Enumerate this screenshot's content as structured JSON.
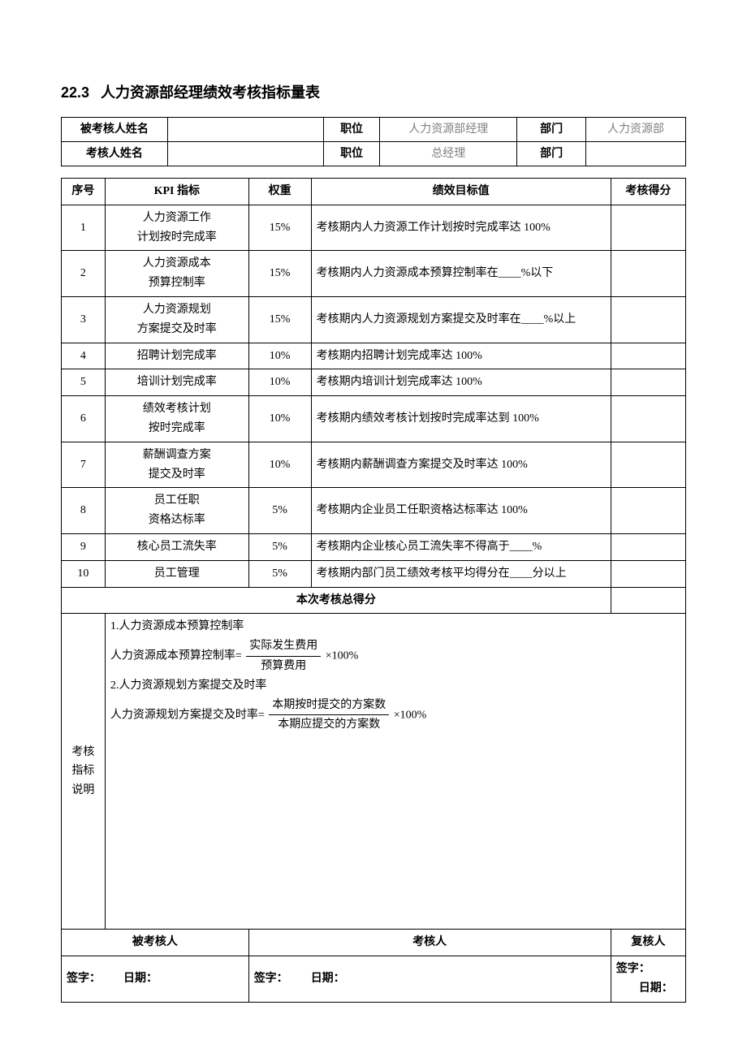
{
  "title_number": "22.3",
  "title_text": "人力资源部经理绩效考核指标量表",
  "header": {
    "row1": {
      "label1": "被考核人姓名",
      "val1": "",
      "label2": "职位",
      "val2": "人力资源部经理",
      "label3": "部门",
      "val3": "人力资源部"
    },
    "row2": {
      "label1": "考核人姓名",
      "val1": "",
      "label2": "职位",
      "val2": "总经理",
      "label3": "部门",
      "val3": ""
    }
  },
  "kpi_headers": {
    "seq": "序号",
    "kpi": "KPI 指标",
    "weight": "权重",
    "target": "绩效目标值",
    "score": "考核得分"
  },
  "kpi_rows": [
    {
      "seq": "1",
      "kpi": "人力资源工作\n计划按时完成率",
      "weight": "15%",
      "target": "考核期内人力资源工作计划按时完成率达 100%"
    },
    {
      "seq": "2",
      "kpi": "人力资源成本\n预算控制率",
      "weight": "15%",
      "target": "考核期内人力资源成本预算控制率在____%以下"
    },
    {
      "seq": "3",
      "kpi": "人力资源规划\n方案提交及时率",
      "weight": "15%",
      "target": "考核期内人力资源规划方案提交及时率在____%以上"
    },
    {
      "seq": "4",
      "kpi": "招聘计划完成率",
      "weight": "10%",
      "target": "考核期内招聘计划完成率达 100%"
    },
    {
      "seq": "5",
      "kpi": "培训计划完成率",
      "weight": "10%",
      "target": "考核期内培训计划完成率达 100%"
    },
    {
      "seq": "6",
      "kpi": "绩效考核计划\n按时完成率",
      "weight": "10%",
      "target": "考核期内绩效考核计划按时完成率达到 100%"
    },
    {
      "seq": "7",
      "kpi": "薪酬调查方案\n提交及时率",
      "weight": "10%",
      "target": "考核期内薪酬调查方案提交及时率达 100%"
    },
    {
      "seq": "8",
      "kpi": "员工任职\n资格达标率",
      "weight": "5%",
      "target": "考核期内企业员工任职资格达标率达 100%"
    },
    {
      "seq": "9",
      "kpi": "核心员工流失率",
      "weight": "5%",
      "target": "考核期内企业核心员工流失率不得高于____%"
    },
    {
      "seq": "10",
      "kpi": "员工管理",
      "weight": "5%",
      "target": "考核期内部门员工绩效考核平均得分在____分以上"
    }
  ],
  "total_label": "本次考核总得分",
  "exp_label": "考核\n指标\n说明",
  "exp": {
    "line1": "1.人力资源成本预算控制率",
    "f1_lead": "人力资源成本预算控制率= ",
    "f1_top": "实际发生费用",
    "f1_bot": "预算费用",
    "f1_tail": " ×100%",
    "line2": "2.人力资源规划方案提交及时率",
    "f2_lead": "人力资源规划方案提交及时率= ",
    "f2_top": "本期按时提交的方案数",
    "f2_bot": "本期应提交的方案数",
    "f2_tail": " ×100%"
  },
  "sign": {
    "h1": "被考核人",
    "h2": "考核人",
    "h3": "复核人",
    "sig": "签字：",
    "date": "日期："
  }
}
